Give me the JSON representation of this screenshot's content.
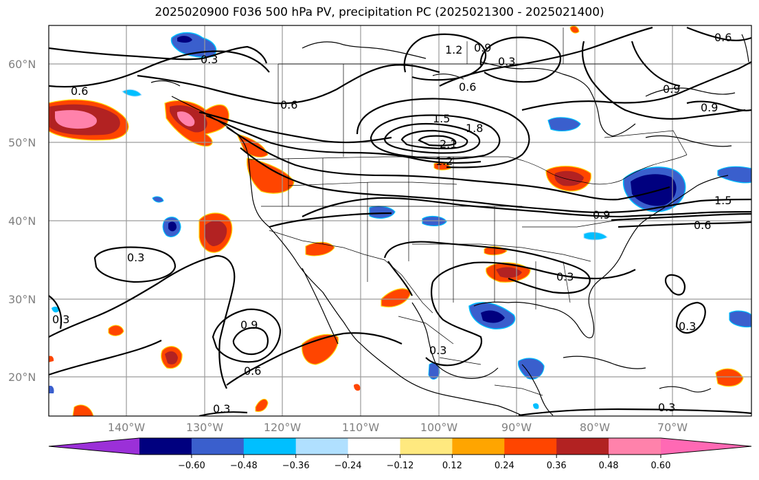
{
  "title": "2025020900 F036 500 hPa PV, precipitation PC (2025021300 - 2025021400)",
  "latitude_labels": [
    "60°N",
    "50°N",
    "40°N",
    "30°N",
    "20°N"
  ],
  "longitude_labels": [
    "140°W",
    "130°W",
    "120°W",
    "110°W",
    "100°W",
    "90°W",
    "80°W",
    "70°W"
  ],
  "contour_labels": [
    "0.3",
    "0.6",
    "0.9",
    "1.2",
    "1.5",
    "1.8",
    "2.1",
    "0.6",
    "0.3",
    "0.6",
    "0.9",
    "1.2",
    "0.9",
    "0.6",
    "1.5",
    "0.9",
    "0.6",
    "0.3",
    "0.9",
    "0.6",
    "0.3",
    "0.3",
    "0.3",
    "0.3",
    "0.3",
    "0.3"
  ],
  "colorbar": {
    "tick_labels": [
      "−0.60",
      "−0.48",
      "−0.36",
      "−0.24",
      "−0.12",
      "0.12",
      "0.24",
      "0.36",
      "0.48",
      "0.60"
    ],
    "colors": [
      "#9b30d8",
      "#00007f",
      "#3a5fcd",
      "#00bfff",
      "#b0e0ff",
      "#ffffff",
      "#ffe97f",
      "#ffa500",
      "#ff4500",
      "#b22222",
      "#ff82ab",
      "#ff69b4"
    ]
  },
  "chart_data": {
    "type": "heatmap",
    "title": "2025020900 F036 500 hPa PV, precipitation PC (2025021300 - 2025021400)",
    "lon_range": [
      -151,
      -61
    ],
    "lat_range": [
      15,
      65
    ],
    "contour_field": "500 hPa PV",
    "contour_levels": [
      0.3,
      0.6,
      0.9,
      1.2,
      1.5,
      1.8,
      2.1
    ],
    "fill_field": "precipitation PC",
    "fill_levels": [
      -0.6,
      -0.48,
      -0.36,
      -0.24,
      -0.12,
      0.12,
      0.24,
      0.36,
      0.48,
      0.6
    ],
    "grid": true,
    "colorbar_placement": "bottom"
  }
}
